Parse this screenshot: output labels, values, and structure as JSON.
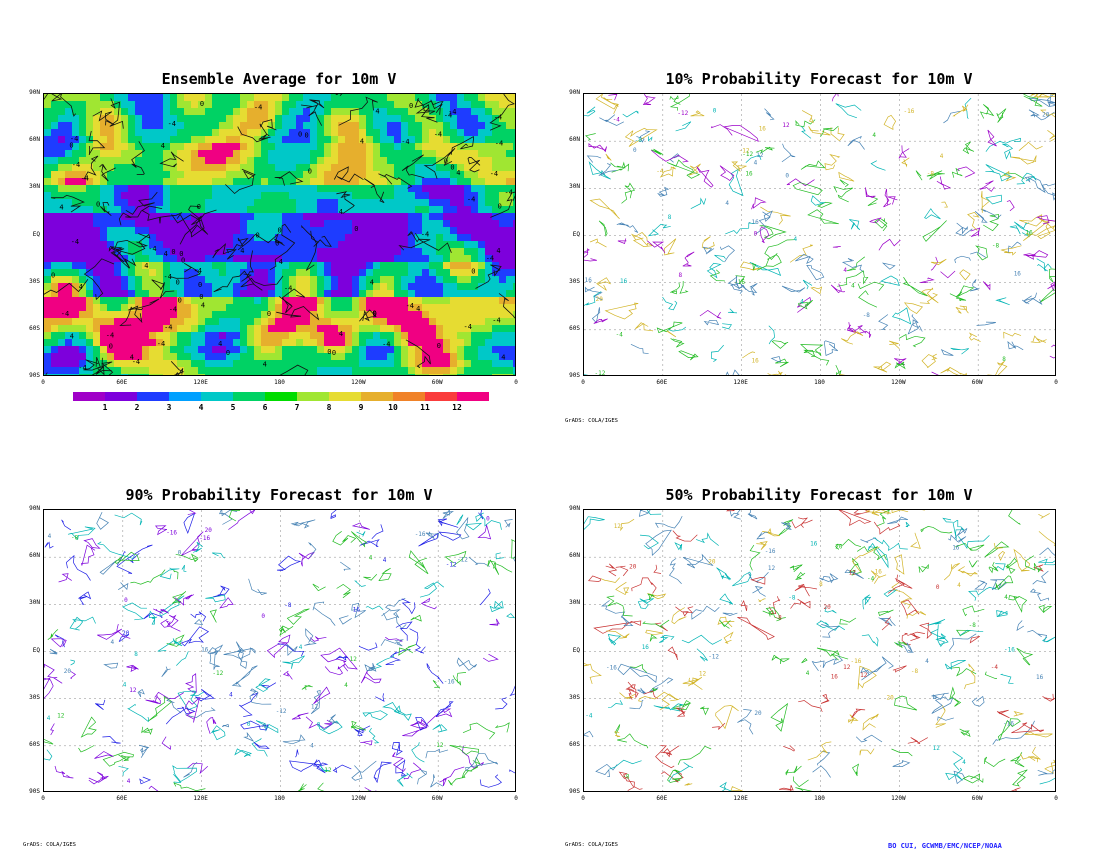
{
  "panels": [
    {
      "id": "ens",
      "title": "Ensemble Average for 10m V",
      "credit": ""
    },
    {
      "id": "p10",
      "title": "10% Probability Forecast for 10m V",
      "credit": "GrADS: COLA/IGES"
    },
    {
      "id": "p90",
      "title": "90% Probability Forecast for 10m V",
      "credit": "GrADS: COLA/IGES"
    },
    {
      "id": "p50",
      "title": "50% Probability Forecast for 10m V",
      "credit": "GrADS: COLA/IGES"
    }
  ],
  "lat_labels": [
    "90N",
    "60N",
    "30N",
    "EQ",
    "30S",
    "60S",
    "90S"
  ],
  "lon_labels": [
    "0",
    "60E",
    "120E",
    "180",
    "120W",
    "60W",
    "0"
  ],
  "colorbar": {
    "labels": [
      "1",
      "2",
      "3",
      "4",
      "5",
      "6",
      "7",
      "8",
      "9",
      "10",
      "11",
      "12"
    ],
    "colors": [
      "#a000c8",
      "#7d00dc",
      "#1e3cff",
      "#00a0ff",
      "#00c8c8",
      "#00d264",
      "#00dc00",
      "#a0e632",
      "#e6dc32",
      "#e6af2d",
      "#f08228",
      "#fa3c3c",
      "#f00082"
    ]
  },
  "shaded_colors": {
    "purple": "#7d00dc",
    "blue": "#1e3cff",
    "cyan": "#00c8c8",
    "green": "#00d264",
    "lime": "#a0e632",
    "yellow": "#e6dc32",
    "orange": "#e6af2d",
    "red": "#f00082"
  },
  "contour_colors": {
    "p10": [
      "#00b4b4",
      "#22bb22",
      "#d2b428",
      "#4682b4",
      "#9b00c8"
    ],
    "p90": [
      "#1e1ee6",
      "#00b4b4",
      "#7d00dc",
      "#22bb22",
      "#4682b4"
    ],
    "p50": [
      "#00b4b4",
      "#22bb22",
      "#d2b428",
      "#4682b4",
      "#c83232"
    ]
  },
  "contour_values": [
    "-4",
    "0",
    "4",
    "-8",
    "8",
    "12",
    "-12",
    "16",
    "-16",
    "20"
  ],
  "author": "BO CUI, GCWMB/EMC/NCEP/NOAA"
}
